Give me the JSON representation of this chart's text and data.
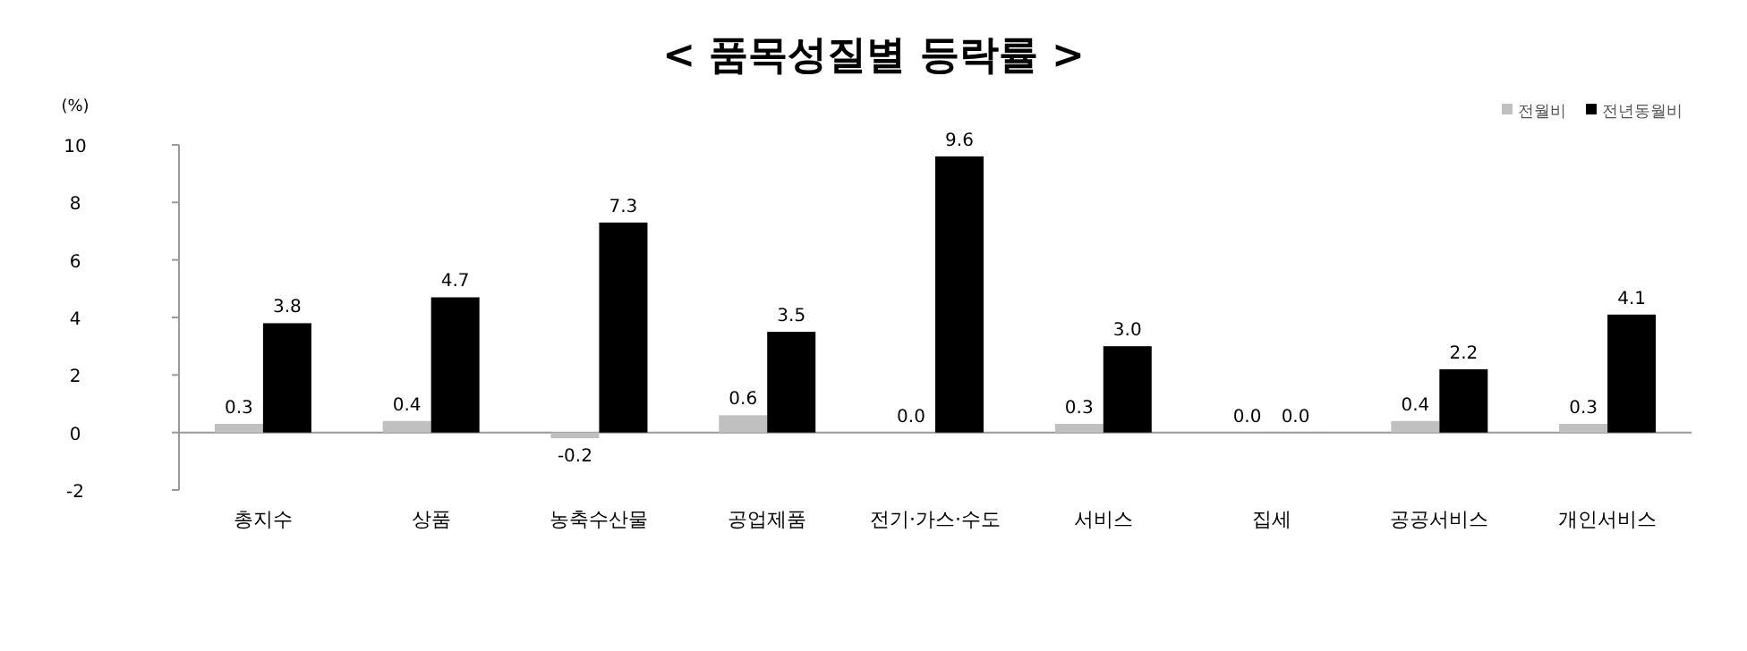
{
  "chart_data": {
    "type": "bar",
    "title": "< 품목성질별 등락률 >",
    "ylabel": "(%)",
    "categories": [
      "총지수",
      "상품",
      "농축수산물",
      "공업제품",
      "전기·가스·수도",
      "서비스",
      "집세",
      "공공서비스",
      "개인서비스"
    ],
    "series": [
      {
        "name": "전월비",
        "color": "#c0c0c0",
        "values": [
          0.3,
          0.4,
          -0.2,
          0.6,
          0.0,
          0.3,
          0.0,
          0.4,
          0.3
        ],
        "value_labels": [
          "0.3",
          "0.4",
          "-0.2",
          "0.6",
          "0.0",
          "0.3",
          "0.0",
          "0.4",
          "0.3"
        ]
      },
      {
        "name": "전년동월비",
        "color": "#000000",
        "values": [
          3.8,
          4.7,
          7.3,
          3.5,
          9.6,
          3.0,
          0.0,
          2.2,
          4.1
        ],
        "value_labels": [
          "3.8",
          "4.7",
          "7.3",
          "3.5",
          "9.6",
          "3.0",
          "0.0",
          "2.2",
          "4.1"
        ]
      }
    ],
    "ylim": [
      -2,
      10
    ],
    "yticks": [
      -2,
      0,
      2,
      4,
      6,
      8,
      10
    ],
    "legend": "top right"
  }
}
